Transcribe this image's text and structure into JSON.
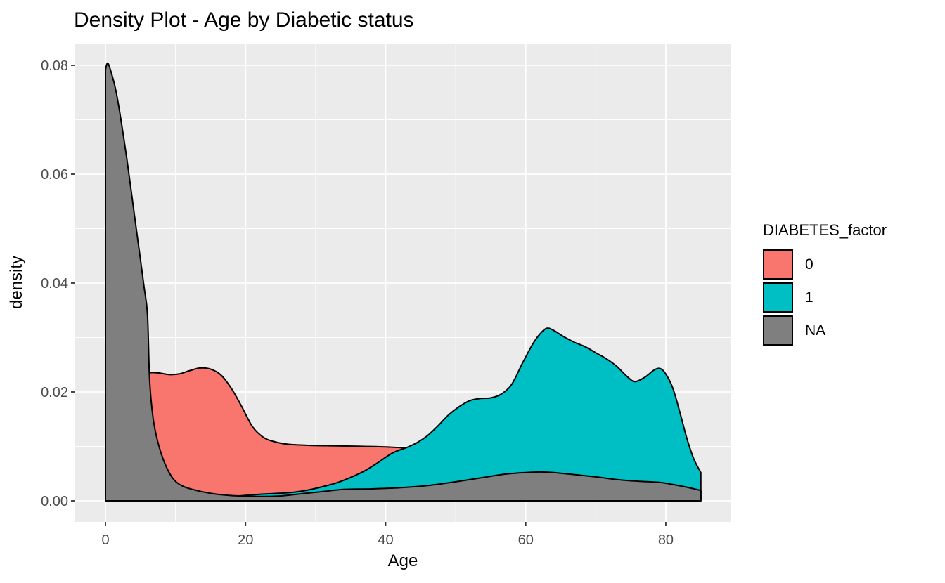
{
  "page": {
    "background": "#FFFFFF"
  },
  "chart_data": {
    "type": "area",
    "subtype": "density",
    "title": "Density Plot - Age by Diabetic status",
    "xlabel": "Age",
    "ylabel": "density",
    "x_ticks": [
      0,
      20,
      40,
      60,
      80
    ],
    "x_minor": [
      10,
      30,
      50,
      70
    ],
    "y_ticks": [
      "0.00",
      "0.02",
      "0.04",
      "0.06",
      "0.08"
    ],
    "y_tick_values": [
      0,
      0.02,
      0.04,
      0.06,
      0.08
    ],
    "xlim": [
      -4.317,
      89.24
    ],
    "ylim": [
      -0.003871,
      0.084
    ],
    "grid": "on",
    "panel_bg": "#EBEBEB",
    "grid_color": "#FFFFFF",
    "outline_color": "#000000",
    "tick_label_color": "#4D4D4D",
    "legend_position": "right",
    "series": [
      {
        "name": "0",
        "color": "#F8766D",
        "points": [
          [
            0,
            0.0125
          ],
          [
            1,
            0.014
          ],
          [
            2,
            0.0158
          ],
          [
            3,
            0.0178
          ],
          [
            4,
            0.0198
          ],
          [
            5,
            0.0218
          ],
          [
            6,
            0.0234
          ],
          [
            7.5,
            0.0235
          ],
          [
            9,
            0.0232
          ],
          [
            10.5,
            0.0233
          ],
          [
            12,
            0.0239
          ],
          [
            13.5,
            0.0244
          ],
          [
            15,
            0.0242
          ],
          [
            16.5,
            0.0231
          ],
          [
            18,
            0.0206
          ],
          [
            19.5,
            0.0172
          ],
          [
            21,
            0.0136
          ],
          [
            22.5,
            0.0117
          ],
          [
            24,
            0.0109
          ],
          [
            26,
            0.0104
          ],
          [
            29,
            0.0102
          ],
          [
            33,
            0.0101
          ],
          [
            37,
            0.01
          ],
          [
            40,
            0.0099
          ],
          [
            43,
            0.0097
          ],
          [
            46,
            0.0093
          ],
          [
            50,
            0.0087
          ],
          [
            55,
            0.0078
          ],
          [
            60,
            0.0068
          ],
          [
            65,
            0.0058
          ],
          [
            70,
            0.0048
          ],
          [
            75,
            0.0038
          ],
          [
            80,
            0.0028
          ],
          [
            85,
            0.0018
          ]
        ]
      },
      {
        "name": "1",
        "color": "#00BFC4",
        "points": [
          [
            0,
            0.0001
          ],
          [
            6,
            0.0002
          ],
          [
            12,
            0.0004
          ],
          [
            16,
            0.0006
          ],
          [
            19,
            0.0009
          ],
          [
            22,
            0.0012
          ],
          [
            25,
            0.0014
          ],
          [
            27,
            0.0016
          ],
          [
            29,
            0.002
          ],
          [
            31,
            0.0026
          ],
          [
            33,
            0.0033
          ],
          [
            35,
            0.0043
          ],
          [
            37,
            0.0055
          ],
          [
            39,
            0.0071
          ],
          [
            41,
            0.0088
          ],
          [
            43,
            0.0098
          ],
          [
            44.5,
            0.0107
          ],
          [
            46,
            0.012
          ],
          [
            47.5,
            0.0138
          ],
          [
            49,
            0.0158
          ],
          [
            50.5,
            0.0173
          ],
          [
            52,
            0.0184
          ],
          [
            53.5,
            0.0188
          ],
          [
            55,
            0.0189
          ],
          [
            56.5,
            0.0196
          ],
          [
            58,
            0.0214
          ],
          [
            59.5,
            0.0252
          ],
          [
            61,
            0.0288
          ],
          [
            62,
            0.0306
          ],
          [
            63,
            0.0317
          ],
          [
            64,
            0.0313
          ],
          [
            65.5,
            0.0301
          ],
          [
            67,
            0.0291
          ],
          [
            68.5,
            0.0283
          ],
          [
            70,
            0.0272
          ],
          [
            71.5,
            0.0261
          ],
          [
            73,
            0.0247
          ],
          [
            74.5,
            0.0228
          ],
          [
            75.6,
            0.0219
          ],
          [
            77,
            0.0227
          ],
          [
            78.3,
            0.024
          ],
          [
            79.2,
            0.0243
          ],
          [
            80,
            0.0233
          ],
          [
            81,
            0.0207
          ],
          [
            82,
            0.0163
          ],
          [
            83,
            0.0115
          ],
          [
            84,
            0.0077
          ],
          [
            85,
            0.0052
          ]
        ]
      },
      {
        "name": "NA",
        "color": "#7F7F7F",
        "points": [
          [
            0,
            0.0792
          ],
          [
            0.35,
            0.0804
          ],
          [
            1,
            0.0779
          ],
          [
            1.5,
            0.0753
          ],
          [
            2,
            0.0717
          ],
          [
            2.5,
            0.0676
          ],
          [
            3,
            0.0633
          ],
          [
            3.5,
            0.0586
          ],
          [
            4,
            0.0538
          ],
          [
            4.5,
            0.049
          ],
          [
            5,
            0.0443
          ],
          [
            5.5,
            0.0394
          ],
          [
            6,
            0.0342
          ],
          [
            6.3,
            0.0223
          ],
          [
            6.8,
            0.0152
          ],
          [
            7.5,
            0.0107
          ],
          [
            8.5,
            0.0068
          ],
          [
            9.7,
            0.004
          ],
          [
            11.2,
            0.0026
          ],
          [
            13.7,
            0.0017
          ],
          [
            16,
            0.0012
          ],
          [
            19,
            0.0009
          ],
          [
            22,
            0.0008
          ],
          [
            25,
            0.0009
          ],
          [
            28,
            0.0013
          ],
          [
            31,
            0.0017
          ],
          [
            34,
            0.0021
          ],
          [
            38,
            0.0022
          ],
          [
            42,
            0.0024
          ],
          [
            46,
            0.0028
          ],
          [
            50,
            0.0035
          ],
          [
            54,
            0.0043
          ],
          [
            57,
            0.0049
          ],
          [
            60,
            0.0052
          ],
          [
            62,
            0.0053
          ],
          [
            64,
            0.0052
          ],
          [
            67,
            0.0048
          ],
          [
            70,
            0.0044
          ],
          [
            73,
            0.0039
          ],
          [
            76,
            0.0036
          ],
          [
            79,
            0.0034
          ],
          [
            81,
            0.003
          ],
          [
            83,
            0.0025
          ],
          [
            85,
            0.0019
          ]
        ]
      }
    ]
  },
  "legend": {
    "title": "DIABETES_factor",
    "items": [
      {
        "label": "0",
        "color": "#F8766D"
      },
      {
        "label": "1",
        "color": "#00BFC4"
      },
      {
        "label": "NA",
        "color": "#7F7F7F"
      }
    ]
  }
}
